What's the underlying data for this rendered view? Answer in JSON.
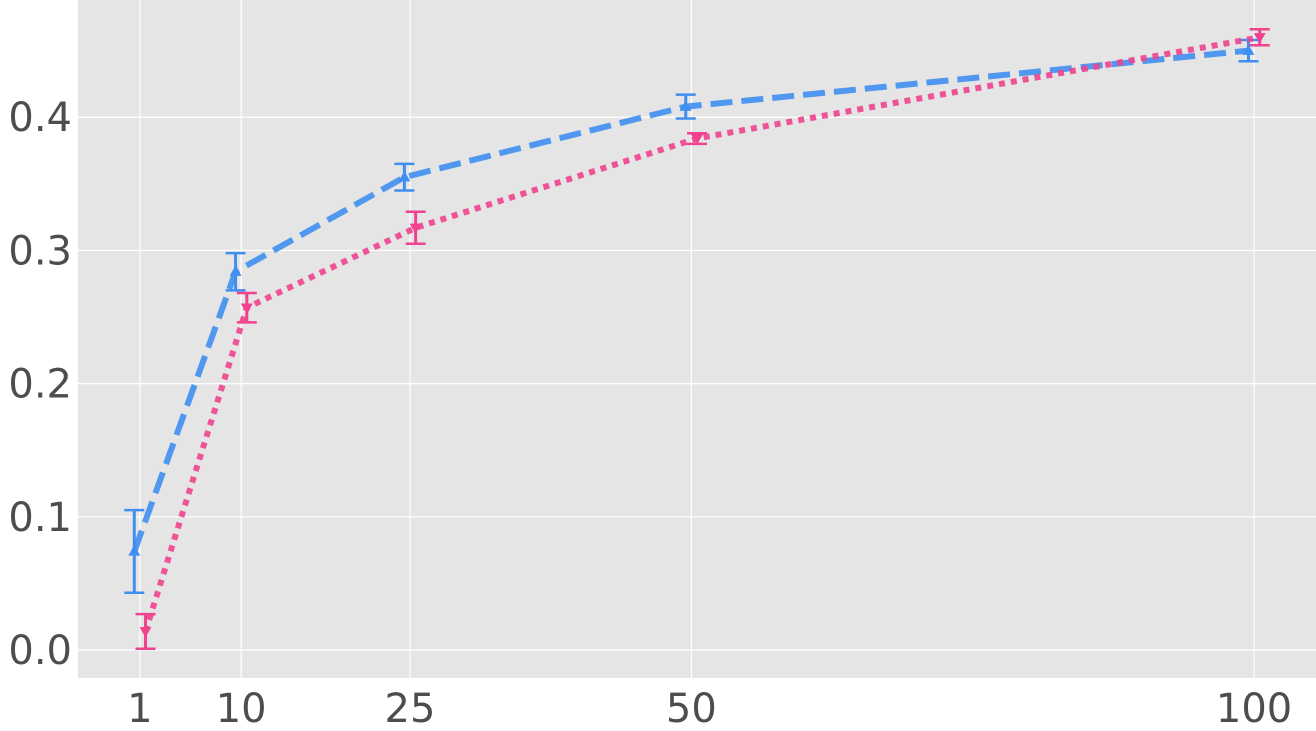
{
  "chart_data": {
    "type": "line",
    "title": "",
    "xlabel": "",
    "ylabel": "",
    "x_ticks": [
      1,
      10,
      25,
      50,
      100
    ],
    "x_tick_labels": [
      "1",
      "10",
      "25",
      "50",
      "100"
    ],
    "y_ticks": [
      0.0,
      0.1,
      0.2,
      0.3,
      0.4
    ],
    "y_tick_labels": [
      "0.0",
      "0.1",
      "0.2",
      "0.3",
      "0.4"
    ],
    "xlim": [
      -4.5,
      105.5
    ],
    "ylim": [
      -0.021,
      0.488
    ],
    "grid": true,
    "legend": "none",
    "background": "#e5e5e5",
    "series": [
      {
        "color": "#3f8ef0",
        "line_style": "dashed",
        "marker": "triangle-up",
        "x": [
          0.5,
          9.5,
          24.5,
          49.5,
          99.5
        ],
        "y": [
          0.074,
          0.284,
          0.355,
          0.408,
          0.45
        ],
        "err": [
          0.031,
          0.014,
          0.01,
          0.009,
          0.008
        ]
      },
      {
        "color": "#f0428e",
        "line_style": "dotted",
        "marker": "triangle-down",
        "x": [
          1.5,
          10.5,
          25.5,
          50.5,
          100.5
        ],
        "y": [
          0.014,
          0.257,
          0.317,
          0.384,
          0.46
        ],
        "err": [
          0.013,
          0.011,
          0.012,
          0.004,
          0.006
        ]
      }
    ]
  }
}
